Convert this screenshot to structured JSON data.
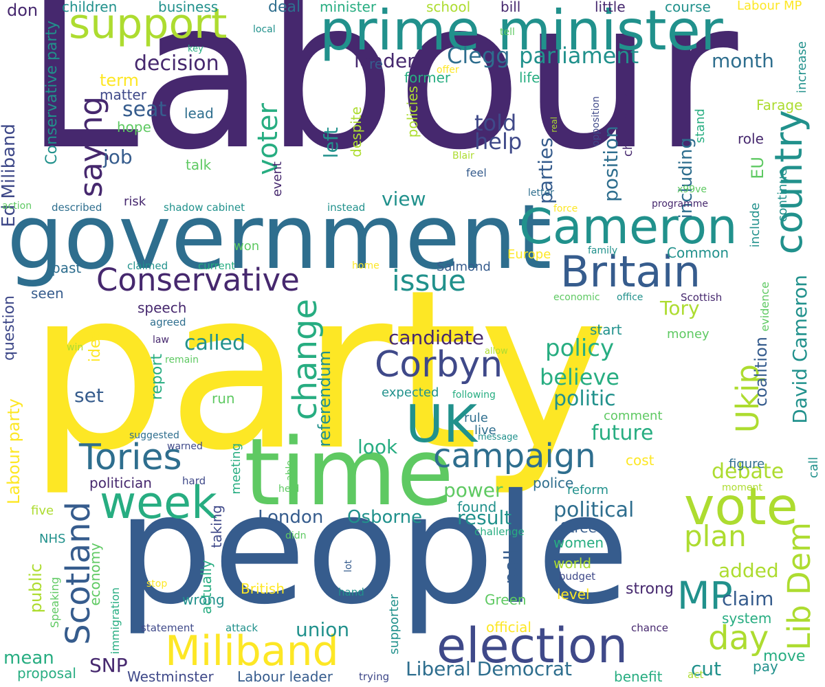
{
  "palette": {
    "dark_purple": "#46286e",
    "indigo": "#3f4989",
    "blue": "#365c8d",
    "slate": "#2e6e8e",
    "teal": "#21918c",
    "green_teal": "#27ad81",
    "green": "#5ec962",
    "lime": "#addc30",
    "yellow": "#fde725"
  },
  "words": [
    {
      "text": "Labour"
    },
    {
      "text": "party"
    },
    {
      "text": "people"
    },
    {
      "text": "government"
    },
    {
      "text": "prime minister"
    },
    {
      "text": "time"
    },
    {
      "text": "election"
    },
    {
      "text": "Cameron"
    },
    {
      "text": "Britain"
    },
    {
      "text": "country"
    },
    {
      "text": "vote"
    },
    {
      "text": "support"
    },
    {
      "text": "Conservative"
    },
    {
      "text": "UK"
    },
    {
      "text": "Miliband"
    },
    {
      "text": "week"
    },
    {
      "text": "MP"
    },
    {
      "text": "campaign"
    },
    {
      "text": "Corbyn"
    },
    {
      "text": "Tories"
    },
    {
      "text": "Scotland"
    },
    {
      "text": "Lib Dem"
    },
    {
      "text": "Ukip"
    },
    {
      "text": "saying"
    },
    {
      "text": "issue"
    },
    {
      "text": "change"
    },
    {
      "text": "voter"
    },
    {
      "text": "plan"
    },
    {
      "text": "day"
    },
    {
      "text": "Clegg"
    },
    {
      "text": "parliament"
    },
    {
      "text": "David Cameron"
    },
    {
      "text": "decision"
    },
    {
      "text": "political"
    },
    {
      "text": "Liberal Democrat"
    },
    {
      "text": "Ed Miliband"
    },
    {
      "text": "Labour party"
    },
    {
      "text": "Conservative party"
    },
    {
      "text": "leader"
    },
    {
      "text": "told"
    },
    {
      "text": "help"
    },
    {
      "text": "position"
    },
    {
      "text": "including"
    },
    {
      "text": "parties"
    },
    {
      "text": "left"
    },
    {
      "text": "seat"
    },
    {
      "text": "job"
    },
    {
      "text": "term"
    },
    {
      "text": "month"
    },
    {
      "text": "candidate"
    },
    {
      "text": "policy"
    },
    {
      "text": "believe"
    },
    {
      "text": "politic"
    },
    {
      "text": "future"
    },
    {
      "text": "debate"
    },
    {
      "text": "called"
    },
    {
      "text": "referendum"
    },
    {
      "text": "coalition"
    },
    {
      "text": "Tory"
    },
    {
      "text": "view"
    },
    {
      "text": "look"
    },
    {
      "text": "power"
    },
    {
      "text": "result"
    },
    {
      "text": "London"
    },
    {
      "text": "Osborne"
    },
    {
      "text": "union"
    },
    {
      "text": "claim"
    },
    {
      "text": "added"
    },
    {
      "text": "cut"
    },
    {
      "text": "question"
    },
    {
      "text": "set"
    },
    {
      "text": "idea"
    },
    {
      "text": "report"
    },
    {
      "text": "economy"
    },
    {
      "text": "public"
    },
    {
      "text": "mean"
    },
    {
      "text": "SNP"
    },
    {
      "text": "Westminster"
    },
    {
      "text": "Labour leader"
    },
    {
      "text": "poll"
    },
    {
      "text": "EU"
    },
    {
      "text": "speech"
    },
    {
      "text": "deal"
    },
    {
      "text": "don"
    },
    {
      "text": "children"
    },
    {
      "text": "business"
    },
    {
      "text": "minister"
    },
    {
      "text": "school"
    },
    {
      "text": "bill"
    },
    {
      "text": "little"
    },
    {
      "text": "course"
    },
    {
      "text": "Labour MP"
    },
    {
      "text": "local"
    },
    {
      "text": "re"
    },
    {
      "text": "tell"
    },
    {
      "text": "key"
    },
    {
      "text": "offer"
    },
    {
      "text": "former"
    },
    {
      "text": "life"
    },
    {
      "text": "matter"
    },
    {
      "text": "lead"
    },
    {
      "text": "hope"
    },
    {
      "text": "talk"
    },
    {
      "text": "despite"
    },
    {
      "text": "policies"
    },
    {
      "text": "Blair"
    },
    {
      "text": "feel"
    },
    {
      "text": "event"
    },
    {
      "text": "chancellor"
    },
    {
      "text": "opposition"
    },
    {
      "text": "real"
    },
    {
      "text": "Farage"
    },
    {
      "text": "stand"
    },
    {
      "text": "role"
    },
    {
      "text": "continue"
    },
    {
      "text": "increase"
    },
    {
      "text": "x99ve"
    },
    {
      "text": "programme"
    },
    {
      "text": "letter"
    },
    {
      "text": "force"
    },
    {
      "text": "include"
    },
    {
      "text": "action"
    },
    {
      "text": "described"
    },
    {
      "text": "risk"
    },
    {
      "text": "shadow cabinet"
    },
    {
      "text": "instead"
    },
    {
      "text": "won"
    },
    {
      "text": "past"
    },
    {
      "text": "claimed"
    },
    {
      "text": "current"
    },
    {
      "text": "home"
    },
    {
      "text": "Salmond"
    },
    {
      "text": "Europe"
    },
    {
      "text": "family"
    },
    {
      "text": "Common"
    },
    {
      "text": "seen"
    },
    {
      "text": "economic"
    },
    {
      "text": "office"
    },
    {
      "text": "Scottish"
    },
    {
      "text": "agreed"
    },
    {
      "text": "law"
    },
    {
      "text": "start"
    },
    {
      "text": "money"
    },
    {
      "text": "evidence"
    },
    {
      "text": "win"
    },
    {
      "text": "remain"
    },
    {
      "text": "allow"
    },
    {
      "text": "expected"
    },
    {
      "text": "following"
    },
    {
      "text": "run"
    },
    {
      "text": "comment"
    },
    {
      "text": "rule"
    },
    {
      "text": "live"
    },
    {
      "text": "message"
    },
    {
      "text": "suggested"
    },
    {
      "text": "warned"
    },
    {
      "text": "meeting"
    },
    {
      "text": "able"
    },
    {
      "text": "figure"
    },
    {
      "text": "cost"
    },
    {
      "text": "call"
    },
    {
      "text": "politician"
    },
    {
      "text": "hard"
    },
    {
      "text": "held"
    },
    {
      "text": "police"
    },
    {
      "text": "reform"
    },
    {
      "text": "moment"
    },
    {
      "text": "five"
    },
    {
      "text": "taking"
    },
    {
      "text": "found"
    },
    {
      "text": "challenge"
    },
    {
      "text": "Street"
    },
    {
      "text": "NHS"
    },
    {
      "text": "didn"
    },
    {
      "text": "women"
    },
    {
      "text": "world"
    },
    {
      "text": "budget"
    },
    {
      "text": "lot"
    },
    {
      "text": "actually"
    },
    {
      "text": "Speaking"
    },
    {
      "text": "stop"
    },
    {
      "text": "British"
    },
    {
      "text": "hand"
    },
    {
      "text": "Green"
    },
    {
      "text": "level"
    },
    {
      "text": "strong"
    },
    {
      "text": "immigration"
    },
    {
      "text": "wrong"
    },
    {
      "text": "statement"
    },
    {
      "text": "attack"
    },
    {
      "text": "supporter"
    },
    {
      "text": "official"
    },
    {
      "text": "system"
    },
    {
      "text": "chance"
    },
    {
      "text": "proposal"
    },
    {
      "text": "trying"
    },
    {
      "text": "benefit"
    },
    {
      "text": "act"
    },
    {
      "text": "pay"
    },
    {
      "text": "move"
    }
  ]
}
